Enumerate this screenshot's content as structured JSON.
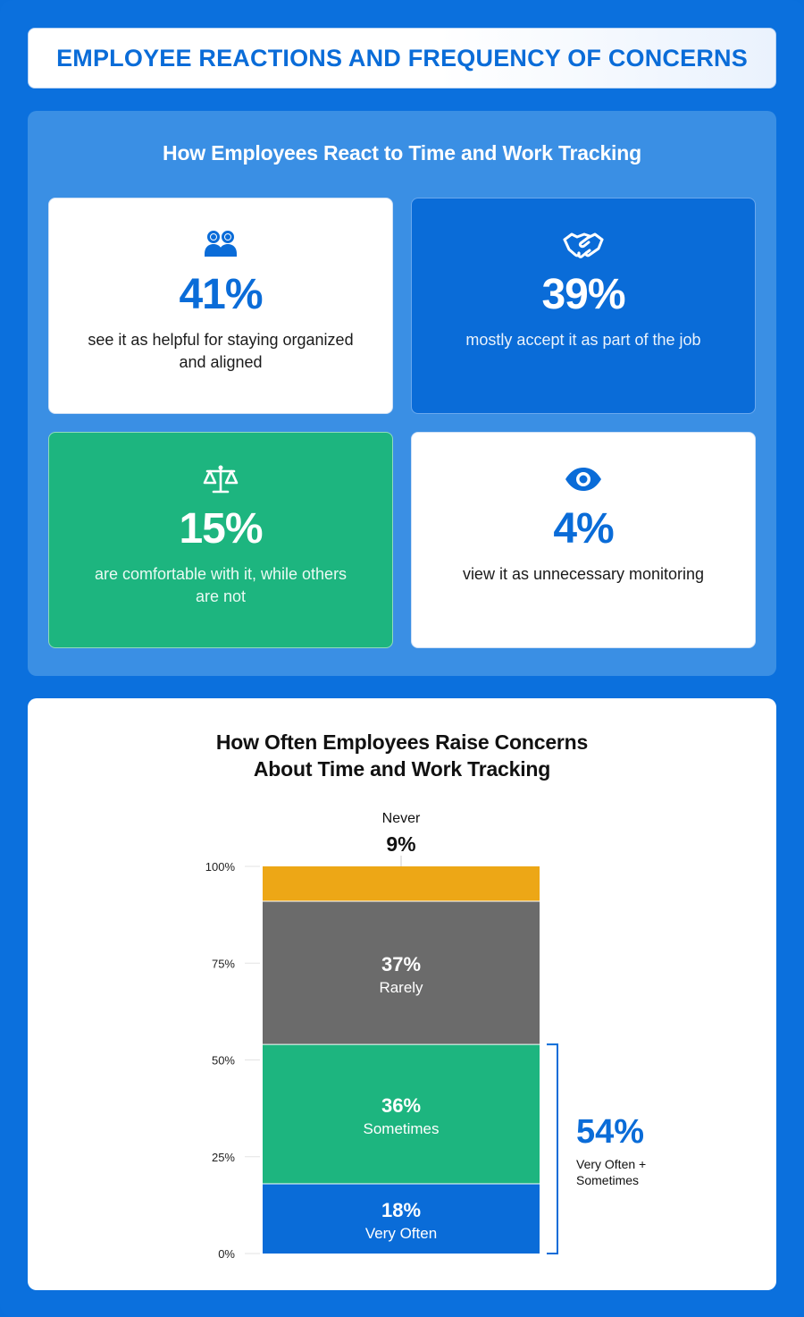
{
  "title": "EMPLOYEE REACTIONS AND FREQUENCY OF CONCERNS",
  "reactions": {
    "heading": "How Employees React to Time and Work Tracking",
    "cards": [
      {
        "value": "41%",
        "text": "see it as helpful for staying organized and aligned",
        "icon": "people-icon",
        "style": "white"
      },
      {
        "value": "39%",
        "text": "mostly accept it as part of the job",
        "icon": "handshake-icon",
        "style": "blue"
      },
      {
        "value": "15%",
        "text": "are comfortable with it, while others are not",
        "icon": "scales-icon",
        "style": "green"
      },
      {
        "value": "4%",
        "text": "view it as unnecessary monitoring",
        "icon": "eye-icon",
        "style": "white"
      }
    ]
  },
  "concerns": {
    "heading_line1": "How Often Employees Raise Concerns",
    "heading_line2": "About Time and Work Tracking"
  },
  "colors": {
    "background": "#0b70dd",
    "panel": "#3a8fe4",
    "blue": "#0a6cd8",
    "green": "#1db57f",
    "gray": "#6b6b6b",
    "orange": "#eda716"
  },
  "chart_data": {
    "type": "bar",
    "stacked": true,
    "categories": [
      ""
    ],
    "series": [
      {
        "name": "Very Often",
        "values": [
          18
        ],
        "label": "18%",
        "color": "#0a6cd8"
      },
      {
        "name": "Sometimes",
        "values": [
          36
        ],
        "label": "36%",
        "color": "#1db57f"
      },
      {
        "name": "Rarely",
        "values": [
          37
        ],
        "label": "37%",
        "color": "#6b6b6b"
      },
      {
        "name": "Never",
        "values": [
          9
        ],
        "label": "9%",
        "color": "#eda716"
      }
    ],
    "yticks": [
      "0%",
      "25%",
      "50%",
      "75%",
      "100%"
    ],
    "ylim": [
      0,
      100
    ],
    "annotation": {
      "value": "54%",
      "text_line1": "Very Often +",
      "text_line2": "Sometimes",
      "spans": [
        "Very Often",
        "Sometimes"
      ]
    }
  }
}
